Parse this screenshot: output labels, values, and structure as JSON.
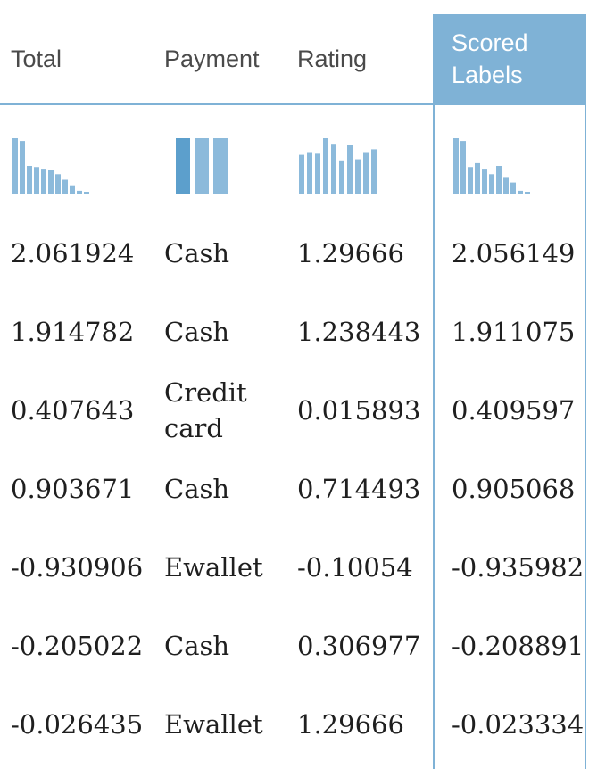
{
  "columns": {
    "total": "Total",
    "payment": "Payment",
    "rating": "Rating",
    "scored_labels": "Scored Labels"
  },
  "colors": {
    "accent": "#7fb2d6",
    "bar": "#8cbadb",
    "bar_dark": "#5c9fcc",
    "text": "#1f1f1f",
    "header_text": "#4a4a4a"
  },
  "histograms": {
    "total": [
      1.0,
      0.95,
      0.5,
      0.48,
      0.45,
      0.42,
      0.35,
      0.25,
      0.15,
      0.05,
      0.03
    ],
    "payment": [
      1.0,
      1.0,
      1.0
    ],
    "rating": [
      0.7,
      0.75,
      0.72,
      1.0,
      0.9,
      0.6,
      0.88,
      0.62,
      0.75,
      0.8
    ],
    "scored_labels": [
      1.0,
      0.95,
      0.48,
      0.55,
      0.45,
      0.35,
      0.5,
      0.3,
      0.2,
      0.05,
      0.03
    ]
  },
  "rows": [
    {
      "total": "2.061924",
      "payment": "Cash",
      "rating": "1.29666",
      "scored": "2.056149"
    },
    {
      "total": "1.914782",
      "payment": "Cash",
      "rating": "1.238443",
      "scored": "1.911075"
    },
    {
      "total": "0.407643",
      "payment": "Credit card",
      "rating": "0.015893",
      "scored": "0.409597"
    },
    {
      "total": "0.903671",
      "payment": "Cash",
      "rating": "0.714493",
      "scored": "0.905068"
    },
    {
      "total": "-0.930906",
      "payment": "Ewallet",
      "rating": "-0.10054",
      "scored": "-0.935982"
    },
    {
      "total": "-0.205022",
      "payment": "Cash",
      "rating": "0.306977",
      "scored": "-0.208891"
    },
    {
      "total": "-0.026435",
      "payment": "Ewallet",
      "rating": "1.29666",
      "scored": "-0.023334"
    }
  ]
}
